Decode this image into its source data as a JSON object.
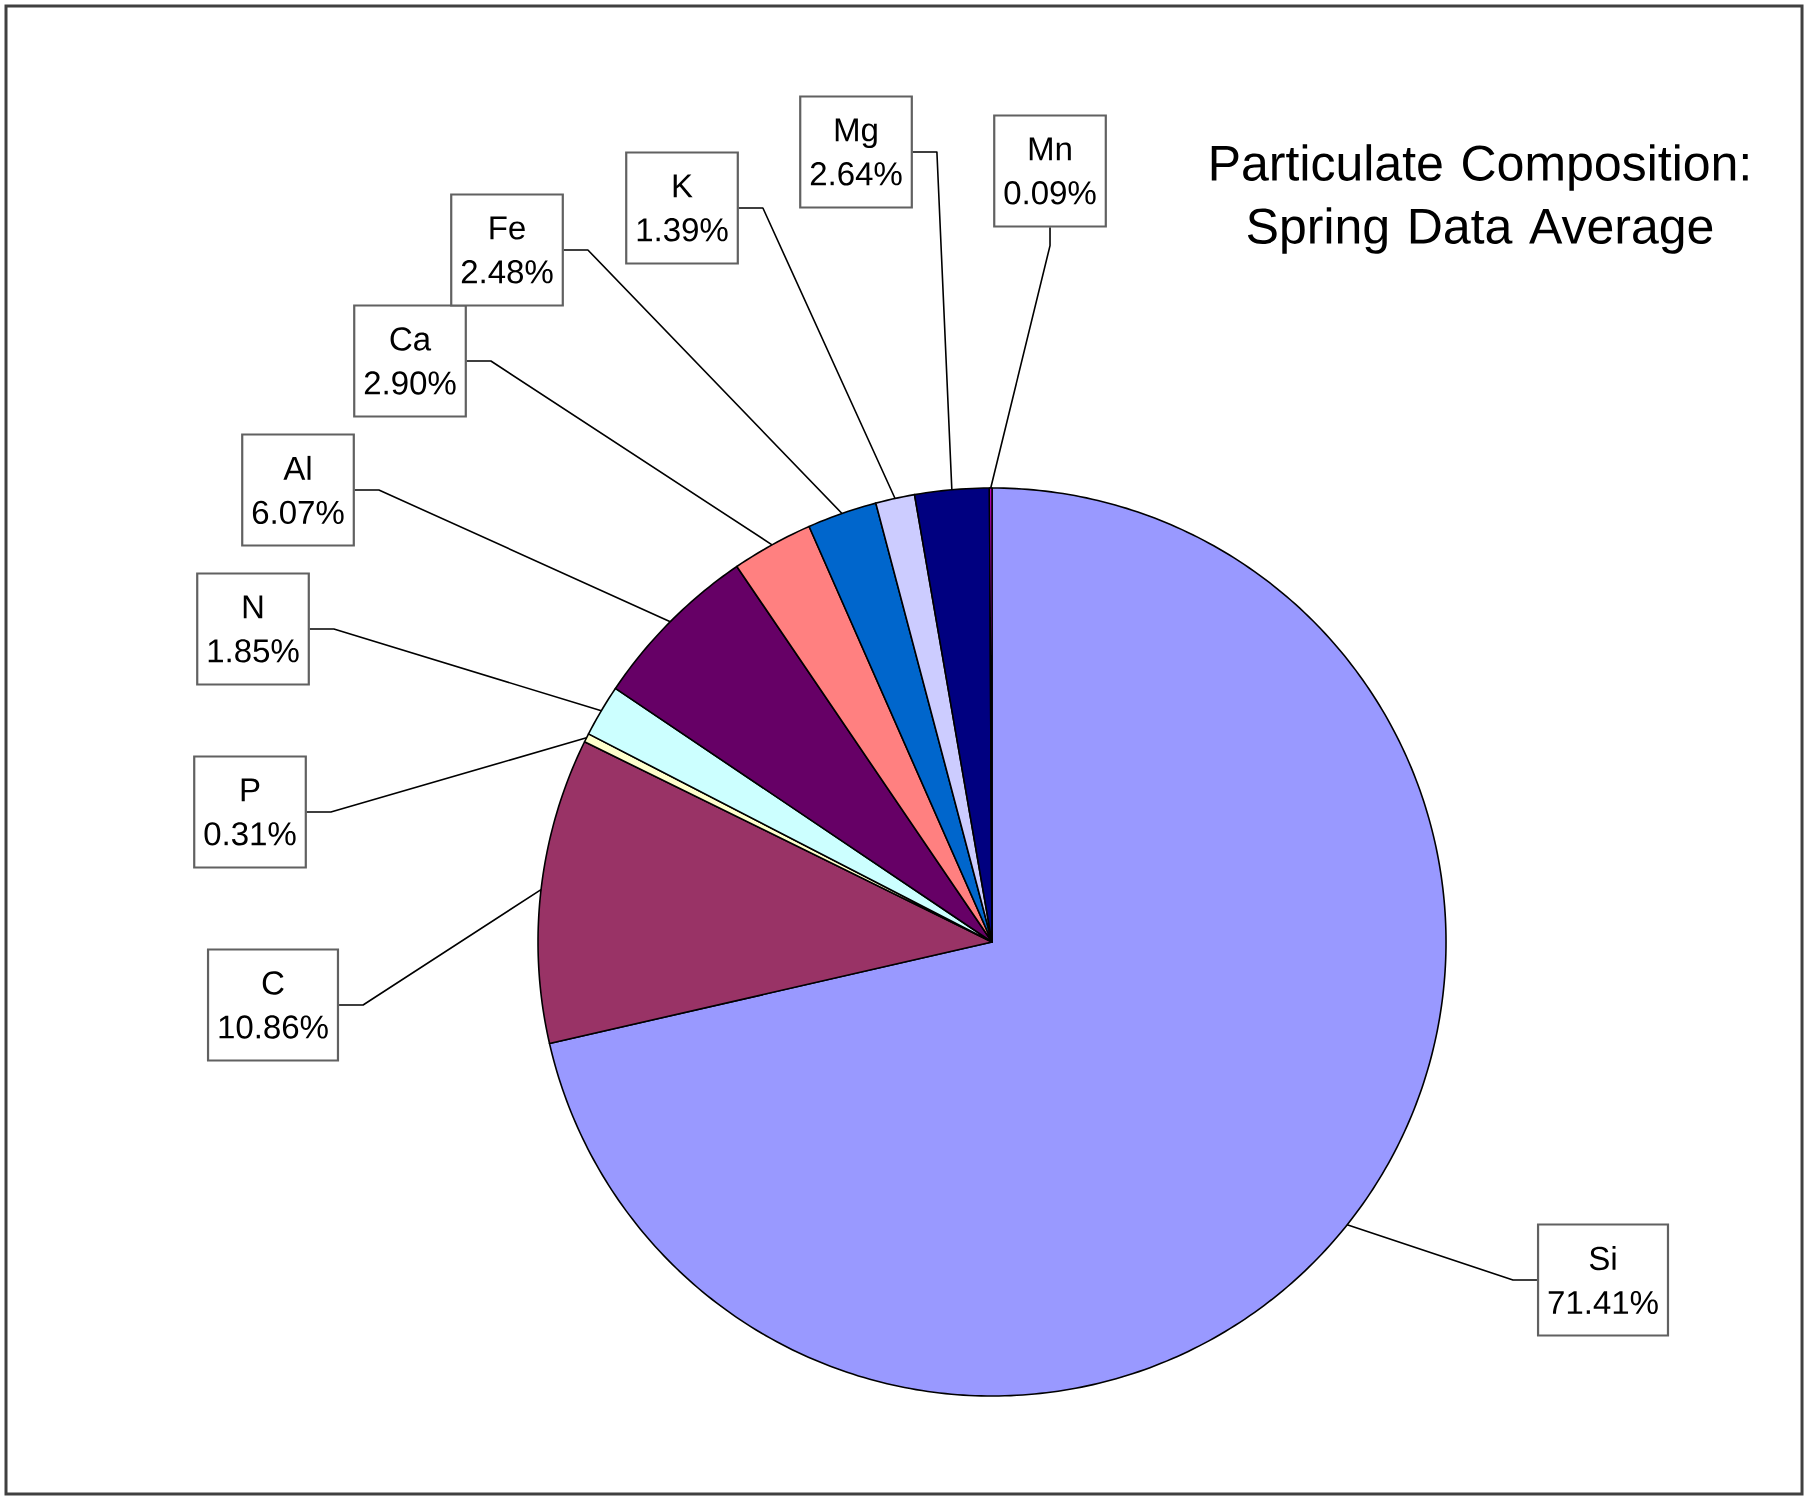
{
  "chart_data": {
    "type": "pie",
    "title": "Particulate Composition: Spring Data Average",
    "categories": [
      "Si",
      "C",
      "P",
      "N",
      "Al",
      "Ca",
      "Fe",
      "K",
      "Mg",
      "Mn"
    ],
    "values": [
      71.41,
      10.86,
      0.31,
      1.85,
      6.07,
      2.9,
      2.48,
      1.39,
      2.64,
      0.09
    ],
    "value_labels": [
      "71.41%",
      "10.86%",
      "0.31%",
      "1.85%",
      "6.07%",
      "2.90%",
      "2.48%",
      "1.39%",
      "2.64%",
      "0.09%"
    ],
    "colors": [
      "#9999ff",
      "#993366",
      "#ffffcc",
      "#ccffff",
      "#660066",
      "#ff8080",
      "#0066cc",
      "#ccccff",
      "#000080",
      "#ff00ff"
    ]
  }
}
